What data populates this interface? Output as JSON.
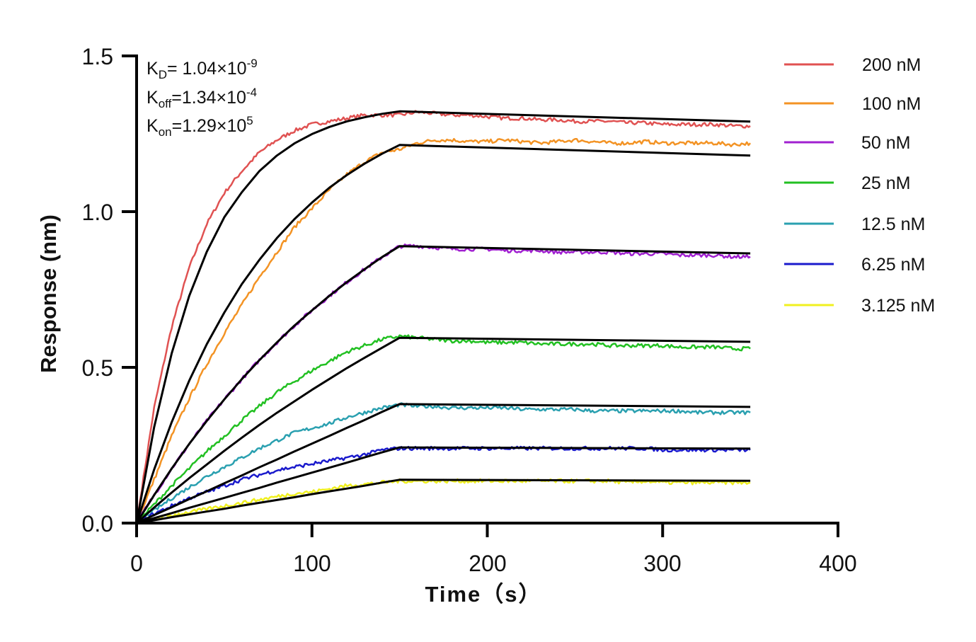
{
  "chart_data": {
    "type": "line",
    "xlabel": "Time（s）",
    "ylabel": "Response (nm)",
    "xlim": [
      0,
      400
    ],
    "ylim": [
      0,
      1.5
    ],
    "x_ticks": [
      "0",
      "100",
      "200",
      "300",
      "400"
    ],
    "y_ticks": [
      "0.0",
      "0.5",
      "1.0",
      "1.5"
    ],
    "grid": false,
    "legend_position": "right",
    "annotations": {
      "kd": {
        "label": "K",
        "sub": "D",
        "value": "= 1.04×10",
        "exp": "-9"
      },
      "koff": {
        "label": "K",
        "sub": "off",
        "value": "=1.34×10",
        "exp": "-4"
      },
      "kon": {
        "label": "K",
        "sub": "on",
        "value": "=1.29×10",
        "exp": "5"
      }
    },
    "time": [
      0,
      10,
      20,
      30,
      40,
      50,
      60,
      70,
      80,
      90,
      100,
      110,
      120,
      130,
      140,
      150,
      160,
      170,
      180,
      190,
      200,
      210,
      220,
      230,
      240,
      250,
      260,
      270,
      280,
      290,
      300,
      310,
      320,
      330,
      340,
      350
    ],
    "series": [
      {
        "name": "200 nM",
        "color": "#e05252",
        "values": [
          0,
          0.37,
          0.63,
          0.82,
          0.96,
          1.06,
          1.13,
          1.19,
          1.23,
          1.26,
          1.28,
          1.29,
          1.3,
          1.31,
          1.31,
          1.31,
          1.32,
          1.315,
          1.31,
          1.31,
          1.305,
          1.3,
          1.3,
          1.295,
          1.295,
          1.29,
          1.29,
          1.29,
          1.285,
          1.285,
          1.28,
          1.28,
          1.28,
          1.28,
          1.275,
          1.275
        ]
      },
      {
        "name": "100 nM",
        "color": "#f39324",
        "values": [
          0,
          0.14,
          0.28,
          0.4,
          0.51,
          0.61,
          0.7,
          0.79,
          0.87,
          0.95,
          1.01,
          1.07,
          1.12,
          1.16,
          1.19,
          1.2,
          1.22,
          1.23,
          1.23,
          1.225,
          1.225,
          1.23,
          1.225,
          1.22,
          1.225,
          1.23,
          1.225,
          1.22,
          1.22,
          1.225,
          1.22,
          1.22,
          1.22,
          1.22,
          1.215,
          1.22
        ]
      },
      {
        "name": "50 nM",
        "color": "#a020d0",
        "values": [
          0,
          0.09,
          0.175,
          0.254,
          0.328,
          0.397,
          0.462,
          0.523,
          0.58,
          0.634,
          0.683,
          0.73,
          0.774,
          0.815,
          0.854,
          0.889,
          0.89,
          0.885,
          0.88,
          0.88,
          0.88,
          0.875,
          0.875,
          0.875,
          0.87,
          0.87,
          0.87,
          0.87,
          0.865,
          0.865,
          0.865,
          0.86,
          0.86,
          0.86,
          0.855,
          0.855
        ]
      },
      {
        "name": "25 nM",
        "color": "#22c022",
        "values": [
          0,
          0.06,
          0.12,
          0.175,
          0.23,
          0.28,
          0.33,
          0.375,
          0.42,
          0.455,
          0.49,
          0.52,
          0.55,
          0.57,
          0.59,
          0.6,
          0.595,
          0.59,
          0.585,
          0.585,
          0.58,
          0.58,
          0.58,
          0.575,
          0.575,
          0.575,
          0.575,
          0.57,
          0.57,
          0.57,
          0.57,
          0.565,
          0.565,
          0.565,
          0.56,
          0.56
        ]
      },
      {
        "name": "12.5 nM",
        "color": "#2aa0b0",
        "values": [
          0,
          0.04,
          0.08,
          0.115,
          0.15,
          0.18,
          0.21,
          0.24,
          0.265,
          0.29,
          0.305,
          0.32,
          0.34,
          0.355,
          0.37,
          0.38,
          0.375,
          0.375,
          0.37,
          0.37,
          0.37,
          0.37,
          0.365,
          0.365,
          0.365,
          0.365,
          0.36,
          0.36,
          0.36,
          0.36,
          0.36,
          0.36,
          0.355,
          0.355,
          0.355,
          0.355
        ]
      },
      {
        "name": "6.25 nM",
        "color": "#1a1acc",
        "values": [
          0,
          0.03,
          0.055,
          0.08,
          0.1,
          0.12,
          0.14,
          0.155,
          0.17,
          0.18,
          0.19,
          0.2,
          0.21,
          0.22,
          0.235,
          0.24,
          0.24,
          0.24,
          0.24,
          0.24,
          0.24,
          0.24,
          0.24,
          0.24,
          0.24,
          0.24,
          0.24,
          0.24,
          0.24,
          0.24,
          0.235,
          0.235,
          0.235,
          0.235,
          0.235,
          0.235
        ]
      },
      {
        "name": "3.125 nM",
        "color": "#f0f020",
        "values": [
          0,
          0.012,
          0.025,
          0.035,
          0.045,
          0.055,
          0.065,
          0.075,
          0.085,
          0.095,
          0.1,
          0.11,
          0.12,
          0.125,
          0.13,
          0.135,
          0.135,
          0.135,
          0.135,
          0.135,
          0.135,
          0.135,
          0.135,
          0.135,
          0.135,
          0.135,
          0.135,
          0.135,
          0.13,
          0.135,
          0.13,
          0.13,
          0.13,
          0.13,
          0.13,
          0.13
        ]
      }
    ],
    "fit": {
      "color": "#000000",
      "time": [
        0,
        10,
        20,
        30,
        40,
        50,
        60,
        70,
        80,
        90,
        100,
        110,
        120,
        130,
        140,
        150,
        350
      ],
      "curves": [
        [
          0,
          0.308,
          0.545,
          0.729,
          0.871,
          0.982,
          1.062,
          1.13,
          1.18,
          1.219,
          1.249,
          1.272,
          1.29,
          1.303,
          1.314,
          1.322,
          1.289
        ],
        [
          0,
          0.172,
          0.324,
          0.457,
          0.574,
          0.676,
          0.767,
          0.845,
          0.915,
          0.976,
          1.029,
          1.077,
          1.118,
          1.154,
          1.186,
          1.214,
          1.18
        ],
        [
          0,
          0.09,
          0.175,
          0.254,
          0.328,
          0.397,
          0.462,
          0.523,
          0.58,
          0.634,
          0.683,
          0.73,
          0.774,
          0.815,
          0.854,
          0.889,
          0.866
        ],
        [
          0,
          0.05,
          0.098,
          0.144,
          0.188,
          0.232,
          0.274,
          0.315,
          0.354,
          0.391,
          0.428,
          0.463,
          0.498,
          0.531,
          0.563,
          0.595,
          0.582
        ],
        [
          0,
          0.026,
          0.051,
          0.077,
          0.102,
          0.128,
          0.153,
          0.179,
          0.204,
          0.23,
          0.255,
          0.28,
          0.306,
          0.331,
          0.357,
          0.382,
          0.373
        ],
        [
          0,
          0.016,
          0.032,
          0.049,
          0.065,
          0.081,
          0.097,
          0.113,
          0.13,
          0.146,
          0.162,
          0.178,
          0.194,
          0.211,
          0.227,
          0.243,
          0.239
        ],
        [
          0,
          0.009,
          0.019,
          0.028,
          0.037,
          0.046,
          0.056,
          0.065,
          0.074,
          0.083,
          0.093,
          0.102,
          0.111,
          0.12,
          0.13,
          0.139,
          0.136
        ]
      ]
    }
  }
}
